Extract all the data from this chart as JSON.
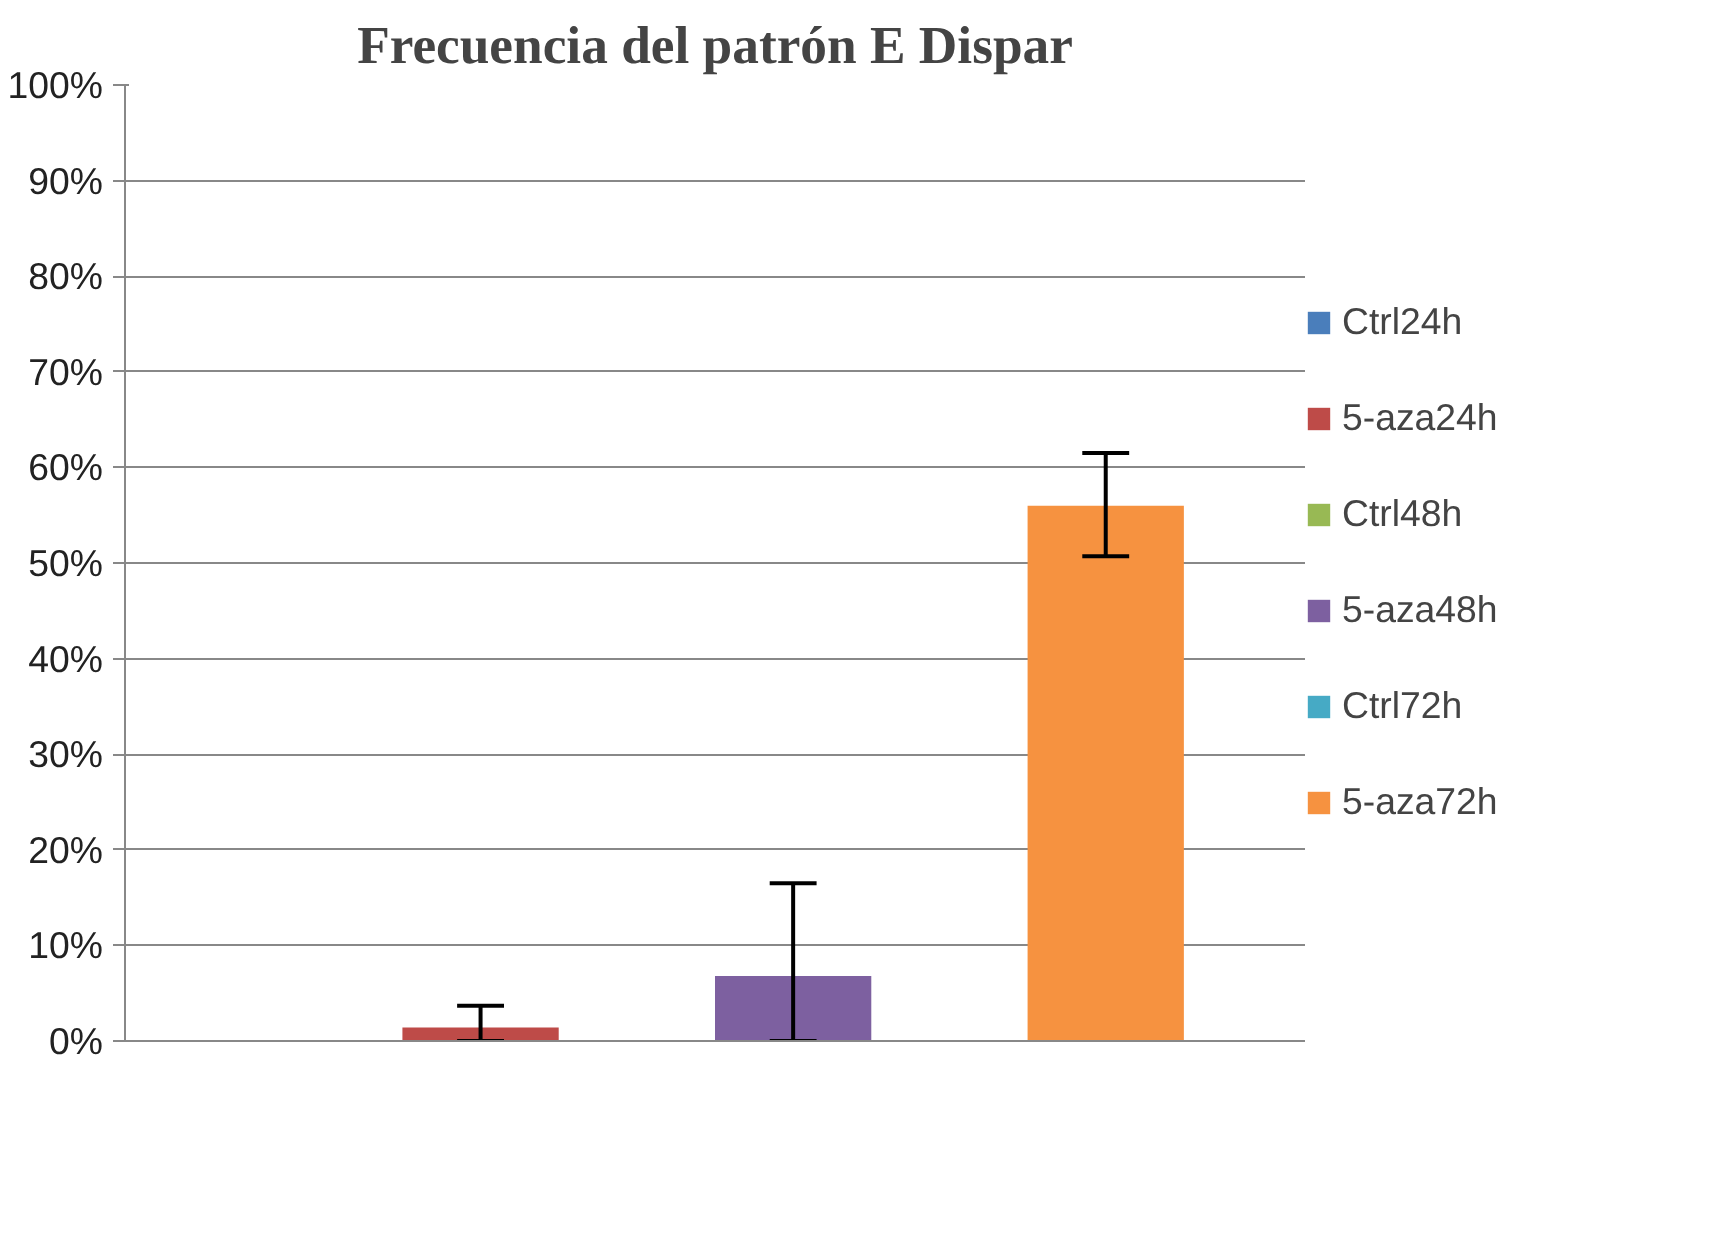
{
  "chart_data": {
    "type": "bar",
    "title": "Frecuencia del patrón E Dispar",
    "categories": [
      null
    ],
    "series": [
      {
        "name": "Ctrl24h",
        "color": "#4a7ebb",
        "values": [
          0
        ],
        "errors": [
          null
        ]
      },
      {
        "name": "5-aza24h",
        "color": "#be4b48",
        "values": [
          1.4
        ],
        "errors": [
          [
            0,
            3.7
          ]
        ]
      },
      {
        "name": "Ctrl48h",
        "color": "#98b954",
        "values": [
          0
        ],
        "errors": [
          null
        ]
      },
      {
        "name": "5-aza48h",
        "color": "#7d60a0",
        "values": [
          6.8
        ],
        "errors": [
          [
            0,
            16.5
          ]
        ]
      },
      {
        "name": "Ctrl72h",
        "color": "#46aac5",
        "values": [
          0
        ],
        "errors": [
          null
        ]
      },
      {
        "name": "5-aza72h",
        "color": "#f69240",
        "values": [
          56.0
        ],
        "errors": [
          [
            50.7,
            61.5
          ]
        ]
      }
    ],
    "ylim": [
      0,
      100
    ],
    "yticks": [
      {
        "value": 0,
        "label": "0%"
      },
      {
        "value": 10,
        "label": "10%"
      },
      {
        "value": 20,
        "label": "20%"
      },
      {
        "value": 30,
        "label": "30%"
      },
      {
        "value": 40,
        "label": "40%"
      },
      {
        "value": 50,
        "label": "50%"
      },
      {
        "value": 60,
        "label": "60%"
      },
      {
        "value": 70,
        "label": "70%"
      },
      {
        "value": 80,
        "label": "80%"
      },
      {
        "value": 90,
        "label": "90%"
      },
      {
        "value": 100,
        "label": "100%"
      }
    ],
    "grid": "y",
    "legend": "right",
    "tick_labels": "y"
  }
}
